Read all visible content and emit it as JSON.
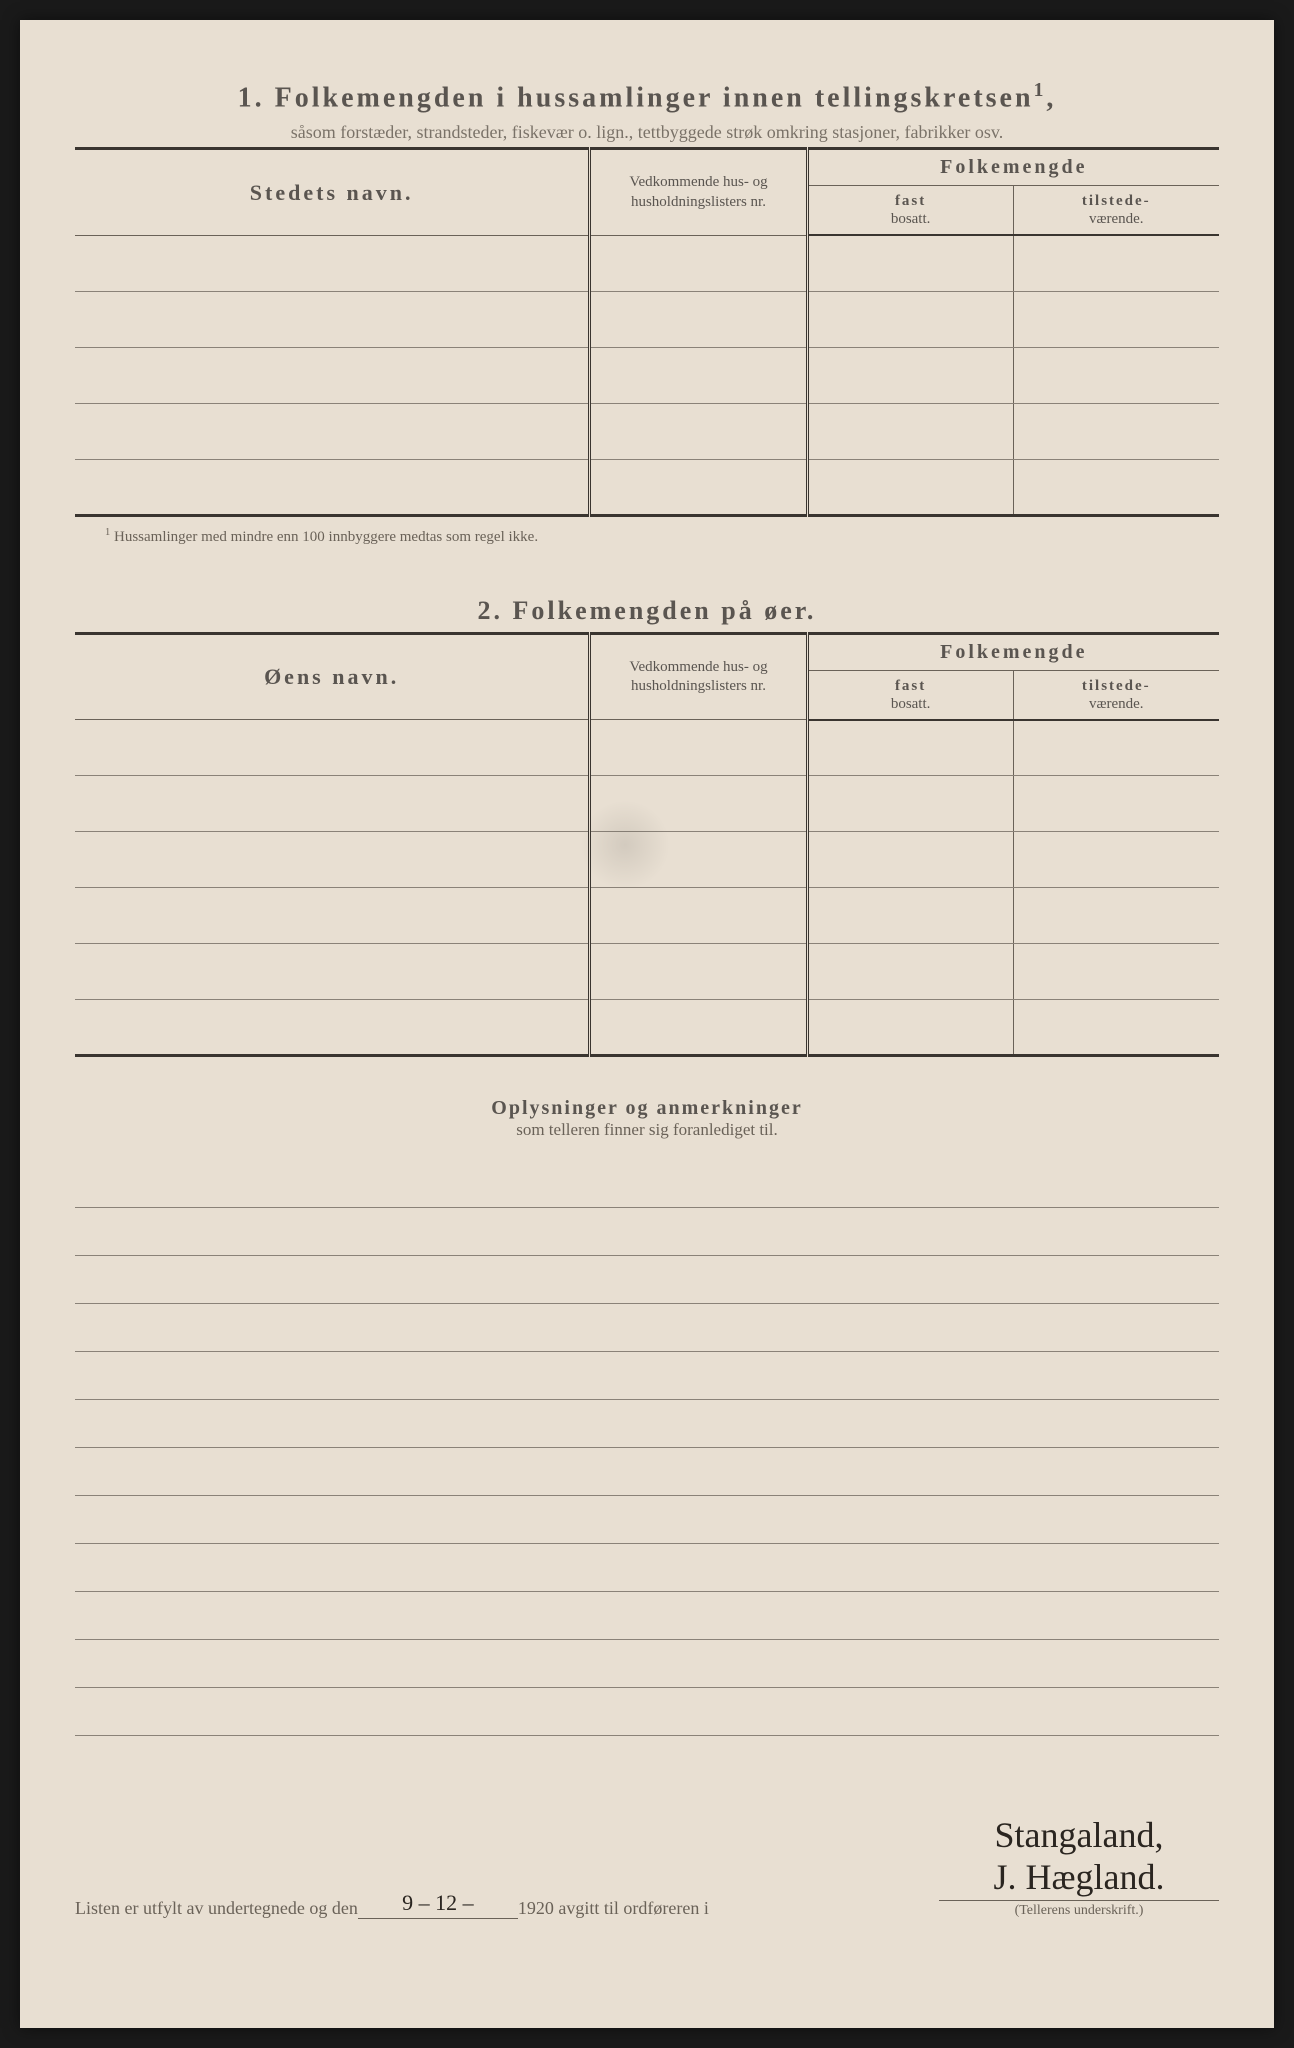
{
  "page": {
    "background_color": "#e8dfd2",
    "text_color": "#5a5550",
    "border_color": "#3a3530",
    "rule_color": "#8a8278"
  },
  "section1": {
    "number": "1.",
    "title": "Folkemengden i hussamlinger innen tellingskretsen",
    "title_sup": "1",
    "subtitle": "såsom forstæder, strandsteder, fiskevær o. lign., tettbyggede strøk omkring stasjoner, fabrikker osv.",
    "col_name": "Stedets navn.",
    "col_hus": "Vedkommende hus- og husholdningslisters nr.",
    "col_folk": "Folkemengde",
    "col_fast_top": "fast",
    "col_fast_bot": "bosatt.",
    "col_til_top": "tilstede-",
    "col_til_bot": "værende.",
    "rows": [
      "",
      "",
      "",
      "",
      ""
    ],
    "footnote_mark": "1",
    "footnote": "Hussamlinger med mindre enn 100 innbyggere medtas som regel ikke."
  },
  "section2": {
    "number": "2.",
    "title": "Folkemengden på øer.",
    "col_name": "Øens navn.",
    "col_hus": "Vedkommende hus- og husholdningslisters nr.",
    "col_folk": "Folkemengde",
    "col_fast_top": "fast",
    "col_fast_bot": "bosatt.",
    "col_til_top": "tilstede-",
    "col_til_bot": "værende.",
    "rows": [
      "",
      "",
      "",
      "",
      "",
      ""
    ]
  },
  "oplysninger": {
    "title": "Oplysninger og anmerkninger",
    "subtitle": "som telleren finner sig foranlediget til.",
    "line_count": 12
  },
  "bottom": {
    "text_a": "Listen er utfylt av undertegnede og den",
    "date_fill": "9 – 12 –",
    "year": "1920",
    "text_b": "avgitt til ordføreren i",
    "place_fill": "Stangaland,",
    "signature": "J. Hægland.",
    "sig_label": "(Tellerens underskrift.)"
  }
}
